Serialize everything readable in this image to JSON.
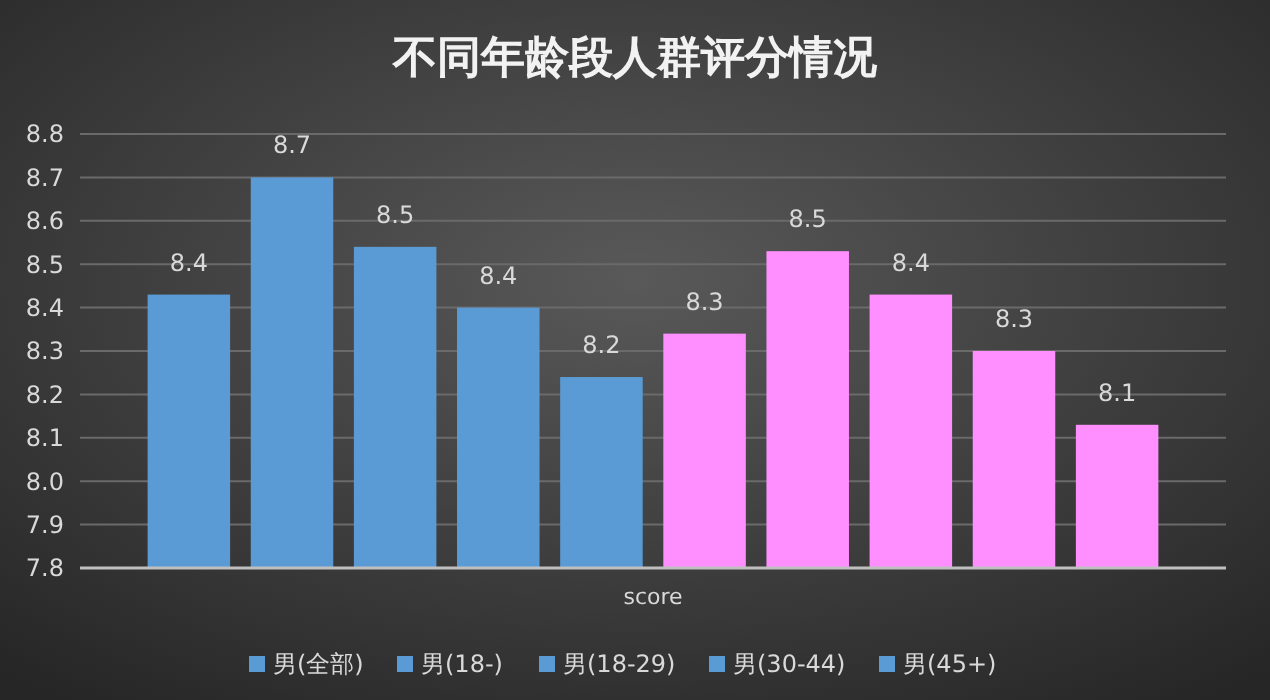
{
  "chart_data": {
    "type": "bar",
    "title": "不同年龄段人群评分情况",
    "xlabel": "score",
    "categories": [
      null
    ],
    "series": [
      {
        "name": "男(全部)",
        "color": "#5b9bd5",
        "values": [
          8.43
        ],
        "value_labels": [
          "8.4"
        ]
      },
      {
        "name": "男(18-)",
        "color": "#5b9bd5",
        "values": [
          8.7
        ],
        "value_labels": [
          "8.7"
        ]
      },
      {
        "name": "男(18-29)",
        "color": "#5b9bd5",
        "values": [
          8.54
        ],
        "value_labels": [
          "8.5"
        ]
      },
      {
        "name": "男(30-44)",
        "color": "#5b9bd5",
        "values": [
          8.4
        ],
        "value_labels": [
          "8.4"
        ]
      },
      {
        "name": "男(45+)",
        "color": "#5b9bd5",
        "values": [
          8.24
        ],
        "value_labels": [
          "8.2"
        ]
      },
      {
        "color": "#ff8fff",
        "values": [
          8.34
        ],
        "value_labels": [
          "8.3"
        ]
      },
      {
        "color": "#ff8fff",
        "values": [
          8.53
        ],
        "value_labels": [
          "8.5"
        ]
      },
      {
        "color": "#ff8fff",
        "values": [
          8.43
        ],
        "value_labels": [
          "8.4"
        ]
      },
      {
        "color": "#ff8fff",
        "values": [
          8.3
        ],
        "value_labels": [
          "8.3"
        ]
      },
      {
        "color": "#ff8fff",
        "values": [
          8.13
        ],
        "value_labels": [
          "8.1"
        ]
      }
    ],
    "ylim": [
      7.8,
      8.8
    ],
    "yticks": [
      {
        "value": 7.8,
        "label": "7.8"
      },
      {
        "value": 7.9,
        "label": "7.9"
      },
      {
        "value": 8.0,
        "label": "8.0"
      },
      {
        "value": 8.1,
        "label": "8.1"
      },
      {
        "value": 8.2,
        "label": "8.2"
      },
      {
        "value": 8.3,
        "label": "8.3"
      },
      {
        "value": 8.4,
        "label": "8.4"
      },
      {
        "value": 8.5,
        "label": "8.5"
      },
      {
        "value": 8.6,
        "label": "8.6"
      },
      {
        "value": 8.7,
        "label": "8.7"
      },
      {
        "value": 8.8,
        "label": "8.8"
      }
    ],
    "grid": "y",
    "legend": "bottom"
  }
}
